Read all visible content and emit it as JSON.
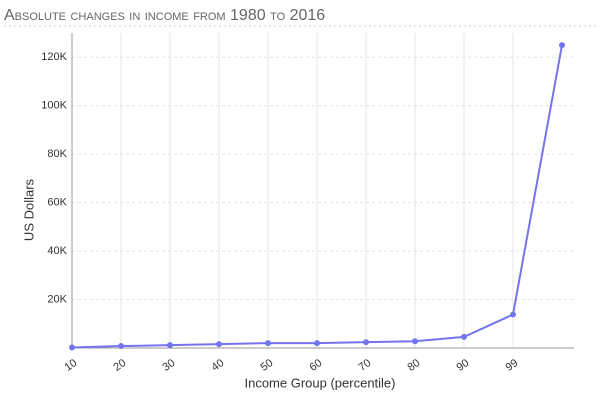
{
  "chart_data": {
    "type": "line",
    "title": "Absolute changes in income from 1980 to 2016",
    "x_label": "Income Group (percentile)",
    "y_label": "US Dollars",
    "categories": [
      "10",
      "20",
      "30",
      "40",
      "50",
      "60",
      "70",
      "80",
      "90",
      "99",
      null
    ],
    "series": [
      {
        "color": "#7474ee",
        "values": [
          200,
          800,
          1200,
          1600,
          2000,
          2000,
          2400,
          2800,
          4600,
          13800,
          125000
        ]
      }
    ],
    "ylim": [
      0,
      130000
    ],
    "yticks": [
      {
        "value": 20000,
        "label": "20K"
      },
      {
        "value": 40000,
        "label": "40K"
      },
      {
        "value": 60000,
        "label": "60K"
      },
      {
        "value": 80000,
        "label": "80K"
      },
      {
        "value": 100000,
        "label": "100K"
      },
      {
        "value": 120000,
        "label": "120K"
      }
    ],
    "grid": true
  }
}
